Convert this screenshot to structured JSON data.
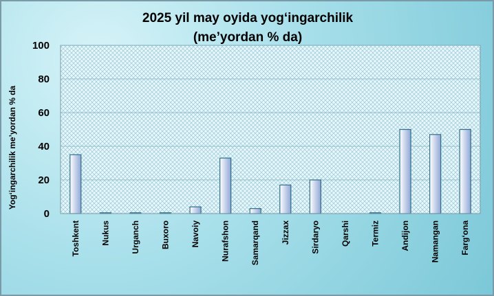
{
  "chart_data": {
    "type": "bar",
    "title": "2025 yil may oyida yog‘ingarchilik",
    "subtitle": "(me’yordan % da)",
    "xlabel": "",
    "ylabel": "Yog‘ingarchilik me’yordan  % da",
    "categories": [
      "Toshkent",
      "Nukus",
      "Urganch",
      "Buxoro",
      "Navoiy",
      "Nurafshon",
      "Samarqand",
      "Jizzax",
      "Sirdaryo",
      "Qarshi",
      "Termiz",
      "Andijon",
      "Namangan",
      "Farg‘ona"
    ],
    "values": [
      35,
      0.5,
      0.5,
      0.5,
      4,
      33,
      3,
      17,
      20,
      0,
      0.5,
      50,
      47,
      50
    ],
    "ylim": [
      0,
      100
    ],
    "yticks": [
      "0",
      "20",
      "40",
      "60",
      "80",
      "100"
    ],
    "grid": true,
    "legend": "none",
    "colors": {
      "bar_fill_light": "#ffffff",
      "bar_fill_dark": "#8fa6d6",
      "bar_stroke": "#2e6f8a",
      "plot_bg": "#e9f7fa",
      "plot_pattern": "#9fcfdc"
    }
  }
}
